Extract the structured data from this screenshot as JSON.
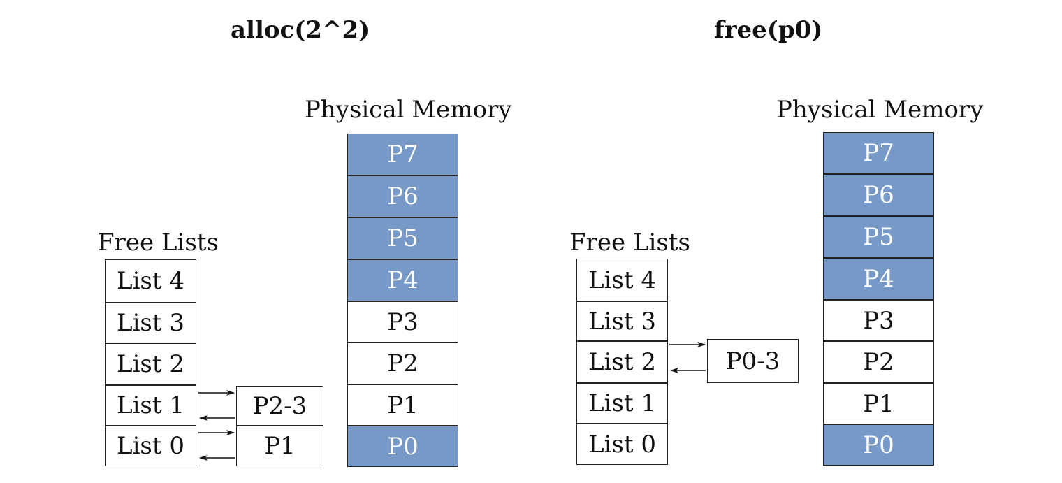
{
  "panels": [
    {
      "title": "alloc(2^2)",
      "free_lists_label": "Free Lists",
      "memory_label": "Physical Memory",
      "lists": [
        "List 4",
        "List 3",
        "List 2",
        "List 1",
        "List 0"
      ],
      "memory": [
        {
          "label": "P7",
          "allocated": true
        },
        {
          "label": "P6",
          "allocated": true
        },
        {
          "label": "P5",
          "allocated": true
        },
        {
          "label": "P4",
          "allocated": true
        },
        {
          "label": "P3",
          "allocated": false
        },
        {
          "label": "P2",
          "allocated": false
        },
        {
          "label": "P1",
          "allocated": false
        },
        {
          "label": "P0",
          "allocated": true
        }
      ],
      "nodes": [
        {
          "label": "P2-3",
          "list": "List 1"
        },
        {
          "label": "P1",
          "list": "List 0"
        }
      ]
    },
    {
      "title": "free(p0)",
      "free_lists_label": "Free Lists",
      "memory_label": "Physical Memory",
      "lists": [
        "List 4",
        "List 3",
        "List 2",
        "List 1",
        "List 0"
      ],
      "memory": [
        {
          "label": "P7",
          "allocated": true
        },
        {
          "label": "P6",
          "allocated": true
        },
        {
          "label": "P5",
          "allocated": true
        },
        {
          "label": "P4",
          "allocated": true
        },
        {
          "label": "P3",
          "allocated": false
        },
        {
          "label": "P2",
          "allocated": false
        },
        {
          "label": "P1",
          "allocated": false
        },
        {
          "label": "P0",
          "allocated": true
        }
      ],
      "nodes": [
        {
          "label": "P0-3",
          "list": "List 2"
        }
      ]
    }
  ],
  "colors": {
    "allocated": "#7699c8",
    "free": "#ffffff",
    "stroke": "#222222"
  }
}
